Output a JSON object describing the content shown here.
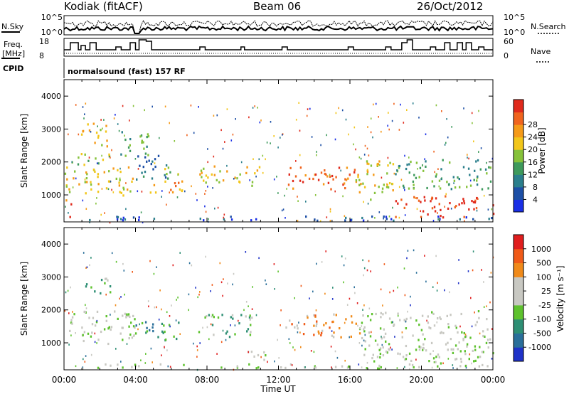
{
  "header": {
    "station": "Kodiak (fitACF)",
    "beam": "Beam 06",
    "date": "26/Oct/2012"
  },
  "labels": {
    "nsky": "N.Sky",
    "nsearch": "N.Search",
    "freq": "Freq.",
    "freq_unit": "[MHz]",
    "nave": "Nave",
    "cpid": "CPID",
    "cpid_value": "normalsound (fast) 157 RF"
  },
  "chart_data": [
    {
      "type": "line",
      "panel": "noise",
      "series": [
        {
          "name": "N.Sky"
        },
        {
          "name": "N.Search"
        }
      ],
      "left_ticks": [
        "10^5",
        "10^0"
      ],
      "right_ticks": [
        "10^5",
        "10^0"
      ]
    },
    {
      "type": "line",
      "panel": "frequency",
      "series": [
        {
          "name": "Freq."
        },
        {
          "name": "Nave"
        }
      ],
      "left_ticks": [
        "18",
        "8"
      ],
      "right_ticks": [
        "60",
        "0"
      ],
      "freq_levels": [
        [
          0.0,
          12.0
        ],
        [
          0.35,
          17.0
        ],
        [
          0.8,
          12.0
        ],
        [
          0.95,
          15.0
        ],
        [
          1.2,
          12.0
        ],
        [
          1.45,
          17.0
        ],
        [
          1.8,
          12.0
        ],
        [
          2.9,
          14.0
        ],
        [
          3.2,
          12.0
        ],
        [
          3.7,
          17.0
        ],
        [
          4.0,
          12.0
        ],
        [
          4.2,
          19.0
        ],
        [
          4.6,
          18.0
        ],
        [
          4.9,
          12.0
        ],
        [
          6.1,
          12.0
        ],
        [
          7.6,
          14.0
        ],
        [
          7.9,
          12.0
        ],
        [
          9.9,
          14.0
        ],
        [
          10.1,
          12.0
        ],
        [
          12.2,
          14.0
        ],
        [
          12.5,
          12.0
        ],
        [
          15.9,
          14.0
        ],
        [
          16.2,
          12.0
        ],
        [
          17.1,
          12.0
        ],
        [
          18.0,
          14.0
        ],
        [
          18.3,
          12.0
        ],
        [
          18.9,
          17.0
        ],
        [
          19.2,
          19.0
        ],
        [
          19.5,
          12.0
        ],
        [
          20.5,
          14.0
        ],
        [
          20.8,
          12.0
        ],
        [
          21.3,
          17.0
        ],
        [
          21.6,
          12.0
        ],
        [
          22.0,
          17.0
        ],
        [
          22.3,
          12.0
        ],
        [
          22.5,
          17.0
        ],
        [
          22.8,
          12.0
        ],
        [
          23.2,
          14.0
        ],
        [
          23.5,
          12.0
        ],
        [
          24.0,
          12.0
        ]
      ]
    },
    {
      "type": "heatmap",
      "panel": "power",
      "ylabel": "Slant Range [km]",
      "ylim": [
        180,
        4500
      ],
      "yticks": [
        1000,
        2000,
        3000,
        4000
      ],
      "xlim": [
        0,
        24
      ],
      "colorbar": {
        "label": "Power [dB]",
        "ticks": [
          "4",
          "8",
          "12",
          "16",
          "20",
          "24",
          "28"
        ],
        "colors": [
          "#1a2fe6",
          "#1d4fa6",
          "#2b7f8c",
          "#3e9a5c",
          "#86c23a",
          "#f2c61a",
          "#f59a18",
          "#f0641e",
          "#e02a1c"
        ]
      },
      "regions": [
        {
          "t0": 0.0,
          "t1": 3.9,
          "r0": 1000,
          "r1": 1900,
          "c": 5
        },
        {
          "t0": 0.0,
          "t1": 0.4,
          "r0": 350,
          "r1": 950,
          "c": 7
        },
        {
          "t0": 0.4,
          "t1": 2.5,
          "r0": 1900,
          "r1": 2300,
          "c": 4
        },
        {
          "t0": 0.8,
          "t1": 2.5,
          "r0": 2500,
          "r1": 3200,
          "c": 5
        },
        {
          "t0": 3.0,
          "t1": 4.8,
          "r0": 2200,
          "r1": 3000,
          "c": 3
        },
        {
          "t0": 4.0,
          "t1": 5.8,
          "r0": 1500,
          "r1": 2300,
          "c": 2
        },
        {
          "t0": 4.8,
          "t1": 7.2,
          "r0": 1100,
          "r1": 1500,
          "c": 6
        },
        {
          "t0": 5.5,
          "t1": 6.5,
          "r0": 1500,
          "r1": 1900,
          "c": 4
        },
        {
          "t0": 7.5,
          "t1": 11.0,
          "r0": 1300,
          "r1": 1900,
          "c": 5
        },
        {
          "t0": 12.3,
          "t1": 16.6,
          "r0": 1200,
          "r1": 1900,
          "c": 7
        },
        {
          "t0": 16.3,
          "t1": 18.5,
          "r0": 800,
          "r1": 2100,
          "c": 5
        },
        {
          "t0": 18.5,
          "t1": 24.0,
          "r0": 1200,
          "r1": 2100,
          "c": 3
        },
        {
          "t0": 18.5,
          "t1": 24.0,
          "r0": 350,
          "r1": 1000,
          "c": 8
        },
        {
          "t0": 0.0,
          "t1": 24.0,
          "r0": 250,
          "r1": 380,
          "c": 1
        }
      ]
    },
    {
      "type": "heatmap",
      "panel": "velocity",
      "ylabel": "Slant Range [km]",
      "xlabel": "Time UT",
      "ylim": [
        180,
        4500
      ],
      "yticks": [
        1000,
        2000,
        3000,
        4000
      ],
      "xlim": [
        0,
        24
      ],
      "xticks": [
        "00:00",
        "04:00",
        "08:00",
        "12:00",
        "16:00",
        "20:00",
        "00:00"
      ],
      "colorbar": {
        "label": "Velocity [m s⁻¹]",
        "ticks": [
          "1000",
          "500",
          "100",
          "25",
          "-25",
          "-100",
          "-500",
          "-1000"
        ],
        "colors": [
          "#1f32c8",
          "#2a6f9a",
          "#2e8f74",
          "#5ec22e",
          "#c8c8c2",
          "#c8c8c2",
          "#f08a1a",
          "#f05a18",
          "#e01e1e"
        ]
      },
      "regions": [
        {
          "t0": 0.0,
          "t1": 4.0,
          "r0": 1000,
          "r1": 2000,
          "c": 4
        },
        {
          "t0": 1.0,
          "t1": 2.8,
          "r0": 2500,
          "r1": 3000,
          "c": 3
        },
        {
          "t0": 3.5,
          "t1": 6.5,
          "r0": 1100,
          "r1": 1700,
          "c": 2
        },
        {
          "t0": 7.5,
          "t1": 10.5,
          "r0": 1200,
          "r1": 1900,
          "c": 3
        },
        {
          "t0": 10.0,
          "t1": 11.8,
          "r0": 500,
          "r1": 800,
          "c": 4
        },
        {
          "t0": 12.3,
          "t1": 16.6,
          "r0": 1200,
          "r1": 1900,
          "c": 6
        },
        {
          "t0": 16.5,
          "t1": 24.0,
          "r0": 400,
          "r1": 2000,
          "c": 4
        },
        {
          "t0": 0.0,
          "t1": 24.0,
          "r0": 250,
          "r1": 380,
          "c": 4
        }
      ]
    }
  ]
}
